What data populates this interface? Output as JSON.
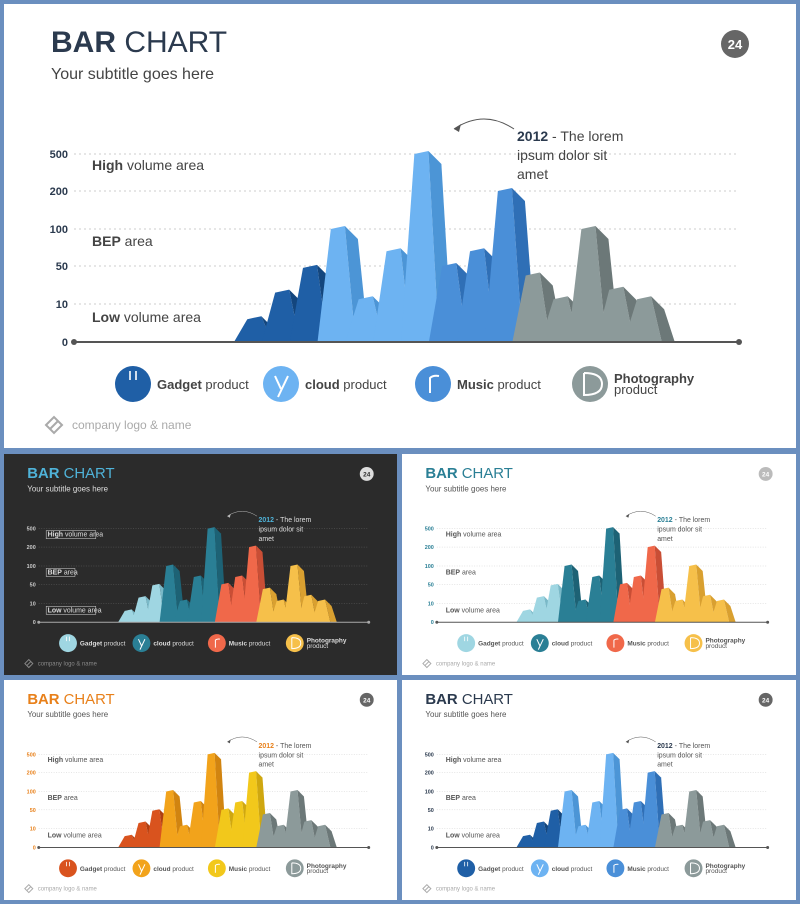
{
  "slide": {
    "title_bold": "BAR",
    "title_rest": " CHART",
    "subtitle": "Your subtitle goes here",
    "page_number": "24",
    "logo_text": "company logo & name"
  },
  "annotation": {
    "year": "2012",
    "sep": " - ",
    "line1": "The lorem",
    "line2": "ipsum dolor sit",
    "line3": "amet"
  },
  "areas": [
    {
      "bold": "High",
      "rest": " volume area"
    },
    {
      "bold": "BEP",
      "rest": " area"
    },
    {
      "bold": "Low",
      "rest": " volume area"
    }
  ],
  "products": [
    {
      "bold": "Gadget",
      "rest": " product",
      "icon": "power-icon"
    },
    {
      "bold": "cloud",
      "rest": " product",
      "icon": "cloud-icon"
    },
    {
      "bold": "Music",
      "rest": " product",
      "icon": "music-icon"
    },
    {
      "bold": "Photography",
      "rest": "product",
      "icon": "camera-icon"
    }
  ],
  "themes": [
    {
      "id": "main",
      "bg": "#ffffff",
      "title": "#2b3a4e",
      "text": "#444444",
      "axis": "#555555",
      "tick": "#2b3a4e",
      "badge": "#666666",
      "groups": [
        {
          "front": "#1f5fa6",
          "side": "#13467e"
        },
        {
          "front": "#6db3f2",
          "side": "#4c95d6"
        },
        {
          "front": "#4a8fd8",
          "side": "#2f6fb6"
        },
        {
          "front": "#8c9a9a",
          "side": "#6c7878"
        }
      ]
    },
    {
      "id": "dark",
      "bg": "#2b2b2b",
      "title": "#4fb3d9",
      "text": "#dddddd",
      "axis": "#aaaaaa",
      "tick": "#cccccc",
      "badge": "#dddddd",
      "groups": [
        {
          "front": "#9fd6e2",
          "side": "#7ab9c8"
        },
        {
          "front": "#2a7f95",
          "side": "#1d6275"
        },
        {
          "front": "#f0684a",
          "side": "#c94e35"
        },
        {
          "front": "#f6c04a",
          "side": "#d9a030"
        }
      ]
    },
    {
      "id": "teal",
      "bg": "#ffffff",
      "title": "#2a7f95",
      "text": "#555555",
      "axis": "#555555",
      "tick": "#2a7f95",
      "badge": "#bbbbbb",
      "groups": [
        {
          "front": "#9fd6e2",
          "side": "#7ab9c8"
        },
        {
          "front": "#2a7f95",
          "side": "#1d6275"
        },
        {
          "front": "#f0684a",
          "side": "#c94e35"
        },
        {
          "front": "#f6c04a",
          "side": "#d9a030"
        }
      ]
    },
    {
      "id": "orange",
      "bg": "#ffffff",
      "title": "#e8801a",
      "text": "#555555",
      "axis": "#555555",
      "tick": "#e8801a",
      "badge": "#666666",
      "groups": [
        {
          "front": "#d9531e",
          "side": "#b03f12"
        },
        {
          "front": "#f2a31b",
          "side": "#d18410"
        },
        {
          "front": "#f2c81b",
          "side": "#cfa710"
        },
        {
          "front": "#8c9a9a",
          "side": "#6c7878"
        }
      ]
    },
    {
      "id": "blue",
      "bg": "#ffffff",
      "title": "#2b3a4e",
      "text": "#555555",
      "axis": "#555555",
      "tick": "#2b3a4e",
      "badge": "#666666",
      "groups": [
        {
          "front": "#1f5fa6",
          "side": "#13467e"
        },
        {
          "front": "#6db3f2",
          "side": "#4c95d6"
        },
        {
          "front": "#4a8fd8",
          "side": "#2f6fb6"
        },
        {
          "front": "#8c9a9a",
          "side": "#6c7878"
        }
      ]
    }
  ],
  "chart_data": {
    "type": "bar",
    "title": "BAR CHART",
    "subtitle": "Your subtitle goes here",
    "y_ticks": [
      "0",
      "10",
      "50",
      "100",
      "200",
      "500"
    ],
    "ylim": [
      0,
      500
    ],
    "series": [
      {
        "name": "Gadget product",
        "values": [
          6,
          22,
          48
        ]
      },
      {
        "name": "cloud product",
        "values": [
          100,
          15,
          70,
          500
        ]
      },
      {
        "name": "Music product",
        "values": [
          50,
          70,
          200
        ]
      },
      {
        "name": "Photography product",
        "values": [
          40,
          15,
          100,
          25,
          15
        ]
      }
    ],
    "grid": true
  }
}
